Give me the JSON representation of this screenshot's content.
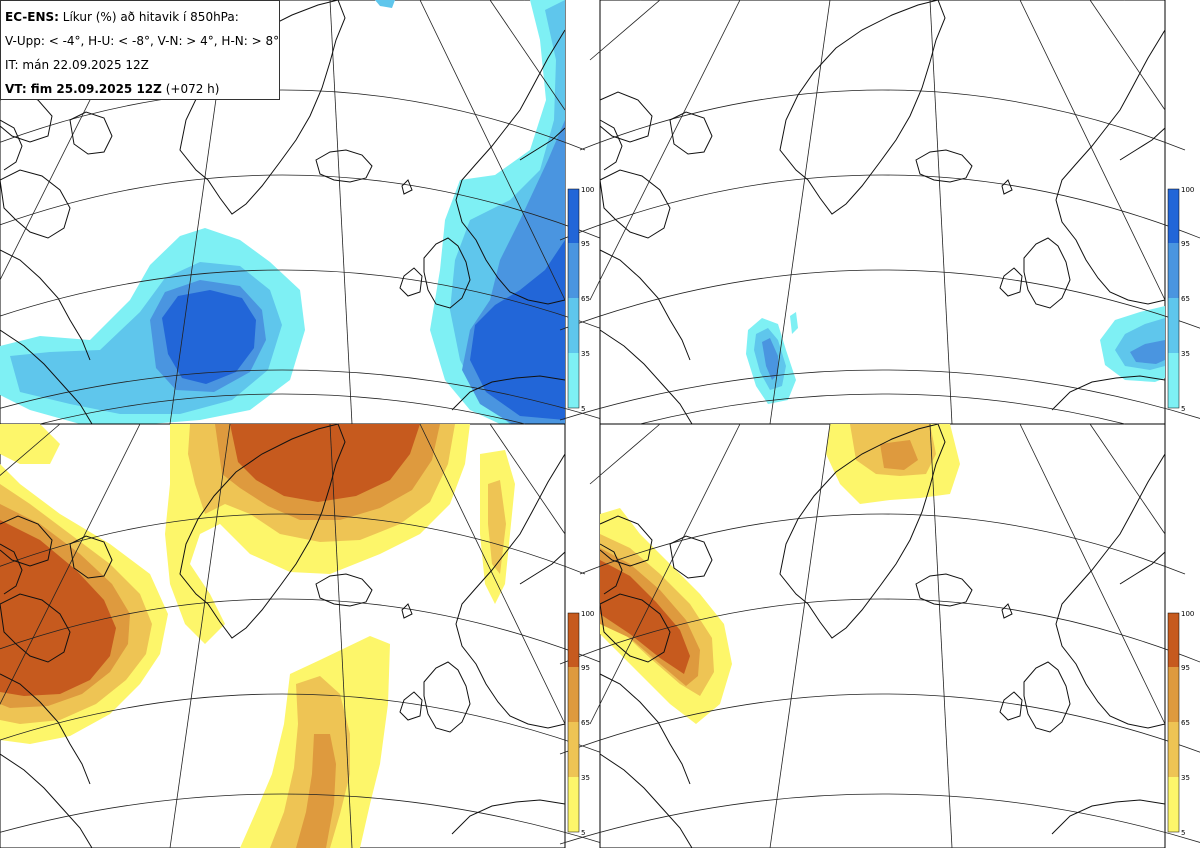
{
  "header": {
    "model": "EC-ENS:",
    "title": "Líkur (%) að hitavik í 850hPa:",
    "thresholds": "V-Upp: < -4°, H-U: < -8°, V-N: > 4°, H-N: > 8°",
    "issue_time": "IT: mán 22.09.2025 12Z",
    "valid_label": "VT: fim 25.09.2025 12Z",
    "valid_offset": "(+072 h)"
  },
  "colorbars": {
    "cold": {
      "ticks": [
        "100",
        "95",
        "65",
        "35",
        "5"
      ],
      "colors": [
        "#2266d8",
        "#4a95e0",
        "#5fc6ec",
        "#7ef0f4"
      ]
    },
    "warm": {
      "ticks": [
        "100",
        "95",
        "65",
        "35",
        "5"
      ],
      "colors": [
        "#c65a1e",
        "#de9a3e",
        "#eec454",
        "#fdf66a"
      ]
    }
  },
  "panels": [
    {
      "name": "V-Upp",
      "quadrant": "top-left",
      "palette": "cold"
    },
    {
      "name": "H-U",
      "quadrant": "top-right",
      "palette": "cold"
    },
    {
      "name": "V-N",
      "quadrant": "bottom-left",
      "palette": "warm"
    },
    {
      "name": "H-N",
      "quadrant": "bottom-right",
      "palette": "warm"
    }
  ]
}
